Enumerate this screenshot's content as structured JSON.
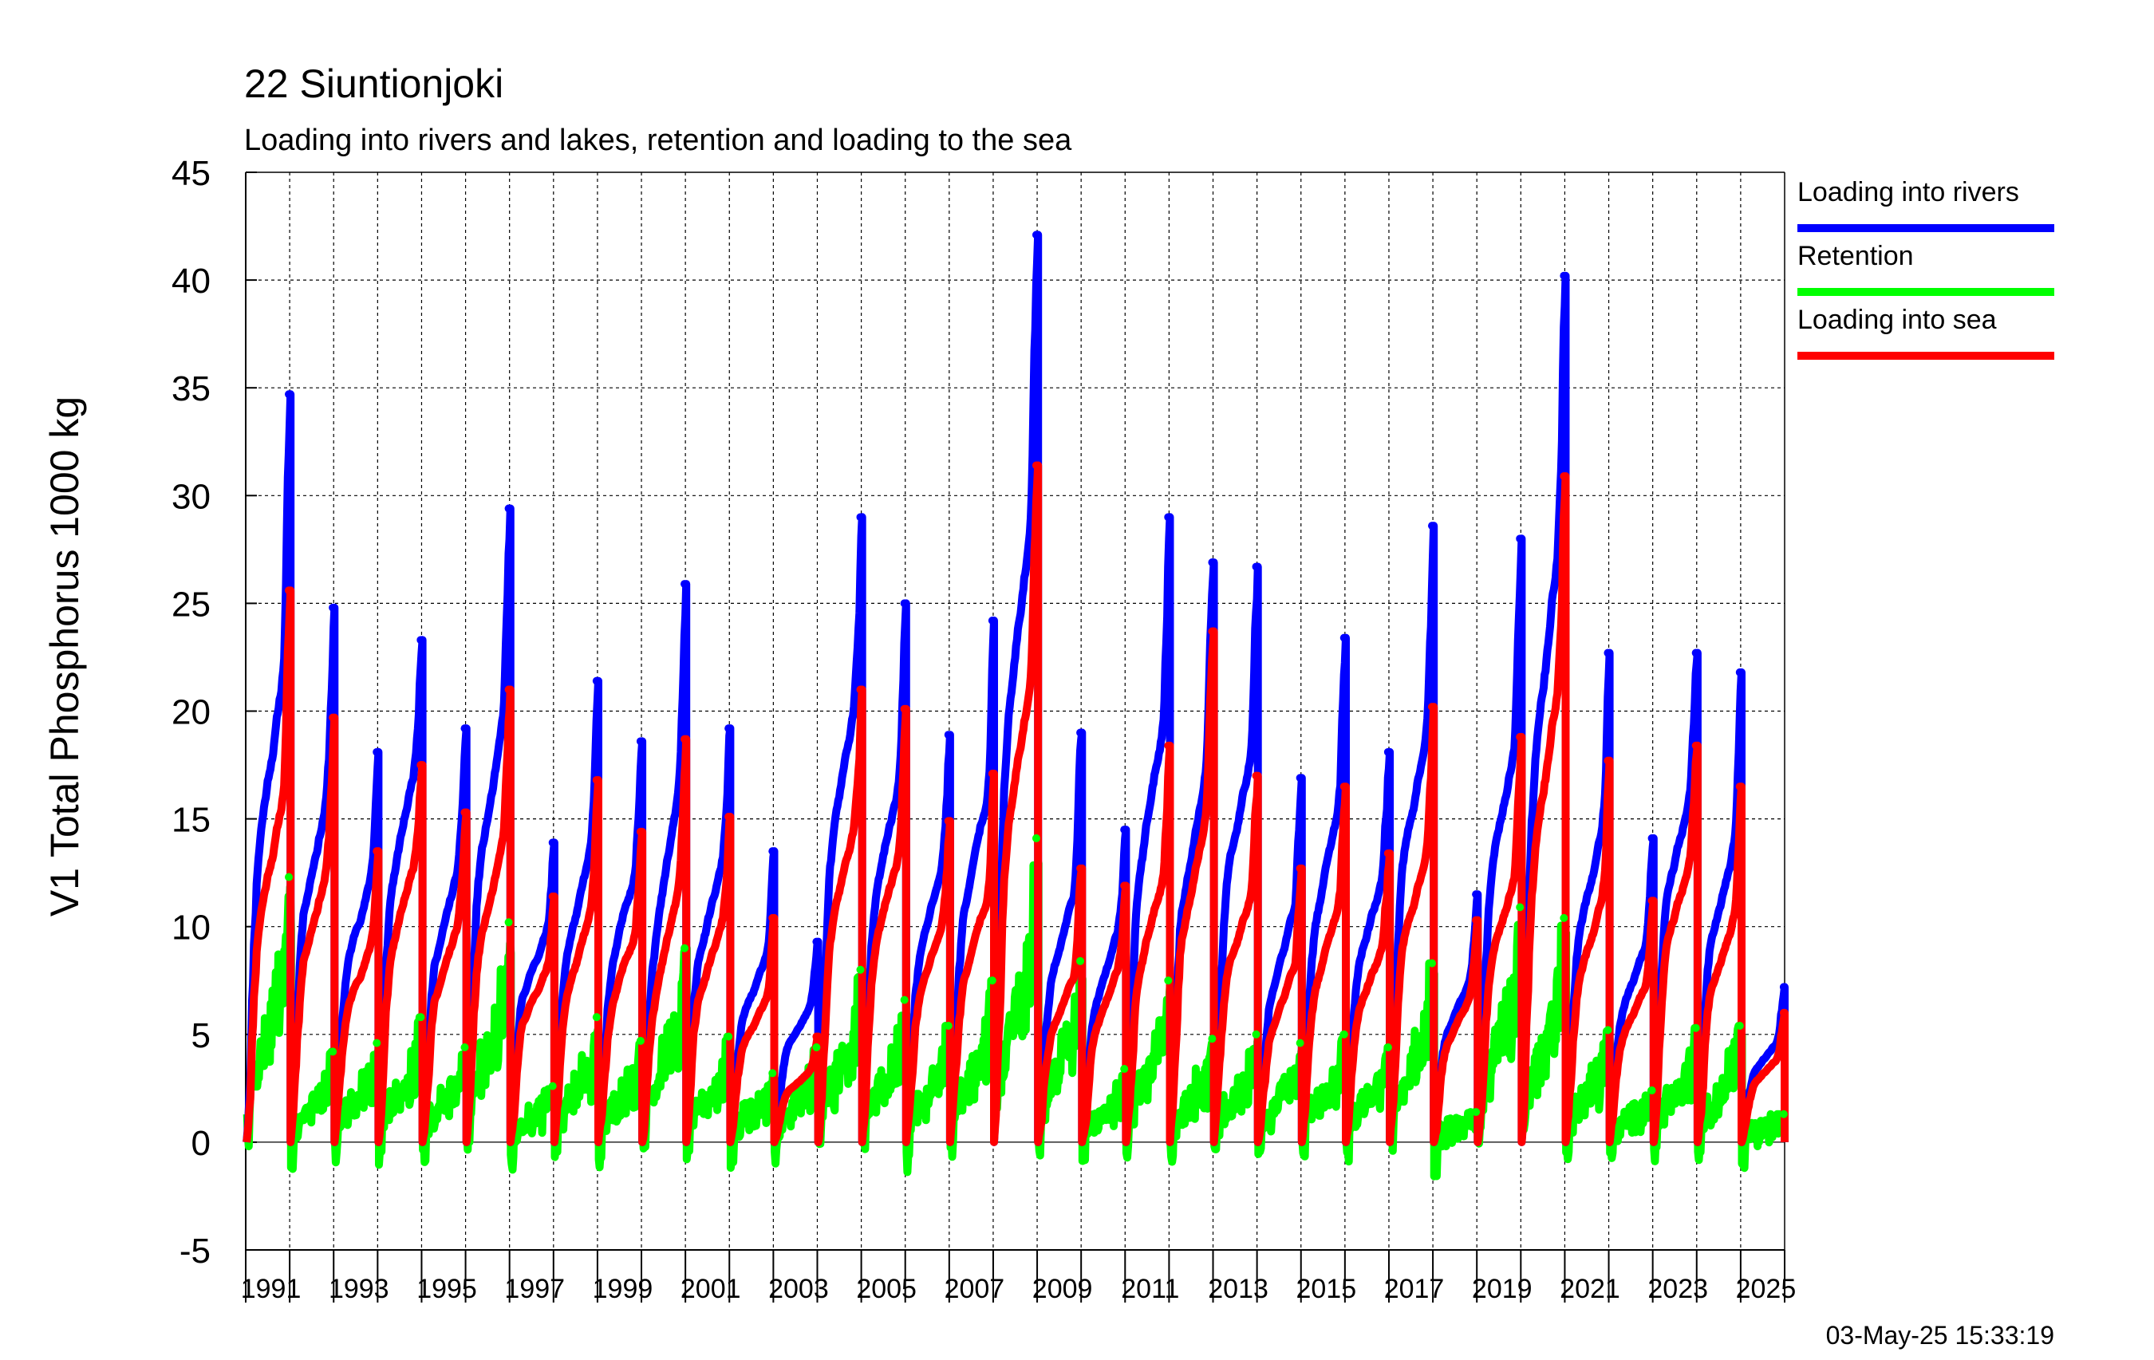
{
  "chart_data": {
    "type": "line",
    "title": "22 Siuntionjoki",
    "subtitle": "Loading into rivers and lakes, retention and loading to the sea",
    "ylabel": "V1 Total Phosphorus 1000 kg",
    "xlabel": "",
    "ylim": [
      -5,
      45
    ],
    "xlim": [
      1990.0,
      2025.0
    ],
    "yticks": [
      -5,
      0,
      5,
      10,
      15,
      20,
      25,
      30,
      35,
      40,
      45
    ],
    "xtick_labels": [
      "1991",
      "1993",
      "1995",
      "1997",
      "1999",
      "2001",
      "2003",
      "2005",
      "2007",
      "2009",
      "2011",
      "2013",
      "2015",
      "2017",
      "2019",
      "2021",
      "2023",
      "2025"
    ],
    "grid": true,
    "legend_position": "right",
    "timestamp": "03-May-25 15:33:19",
    "series": [
      {
        "name": "Loading into rivers",
        "color": "#0000ff",
        "description": "Cumulative within each hydrological year, reset each year",
        "yearly_peaks": [
          {
            "year": 1990,
            "value": 34.7
          },
          {
            "year": 1991,
            "value": 24.8
          },
          {
            "year": 1992,
            "value": 18.1
          },
          {
            "year": 1993,
            "value": 23.3
          },
          {
            "year": 1994,
            "value": 19.2
          },
          {
            "year": 1995,
            "value": 29.4
          },
          {
            "year": 1996,
            "value": 13.9
          },
          {
            "year": 1997,
            "value": 21.4
          },
          {
            "year": 1998,
            "value": 18.6
          },
          {
            "year": 1999,
            "value": 25.9
          },
          {
            "year": 2000,
            "value": 19.2
          },
          {
            "year": 2001,
            "value": 13.5
          },
          {
            "year": 2002,
            "value": 9.3
          },
          {
            "year": 2003,
            "value": 29.0
          },
          {
            "year": 2004,
            "value": 25.0
          },
          {
            "year": 2005,
            "value": 18.9
          },
          {
            "year": 2006,
            "value": 24.2
          },
          {
            "year": 2007,
            "value": 42.1
          },
          {
            "year": 2008,
            "value": 19.0
          },
          {
            "year": 2009,
            "value": 14.5
          },
          {
            "year": 2010,
            "value": 29.0
          },
          {
            "year": 2011,
            "value": 26.9
          },
          {
            "year": 2012,
            "value": 26.7
          },
          {
            "year": 2013,
            "value": 16.9
          },
          {
            "year": 2014,
            "value": 23.4
          },
          {
            "year": 2015,
            "value": 18.1
          },
          {
            "year": 2016,
            "value": 28.6
          },
          {
            "year": 2017,
            "value": 11.5
          },
          {
            "year": 2018,
            "value": 28.0
          },
          {
            "year": 2019,
            "value": 40.2
          },
          {
            "year": 2020,
            "value": 22.7
          },
          {
            "year": 2021,
            "value": 14.1
          },
          {
            "year": 2022,
            "value": 22.7
          },
          {
            "year": 2023,
            "value": 21.8
          },
          {
            "year": 2024,
            "value": 7.2
          }
        ]
      },
      {
        "name": "Retention",
        "color": "#00ff00",
        "description": "Fluctuates between roughly -4 and 14",
        "yearly_peaks": [
          {
            "year": 1990,
            "value": 12.3
          },
          {
            "year": 1991,
            "value": 4.2
          },
          {
            "year": 1992,
            "value": 4.6
          },
          {
            "year": 1993,
            "value": 5.8
          },
          {
            "year": 1994,
            "value": 4.4
          },
          {
            "year": 1995,
            "value": 10.2
          },
          {
            "year": 1996,
            "value": 2.6
          },
          {
            "year": 1997,
            "value": 5.8
          },
          {
            "year": 1998,
            "value": 4.7
          },
          {
            "year": 1999,
            "value": 9.0
          },
          {
            "year": 2000,
            "value": 4.9
          },
          {
            "year": 2001,
            "value": 3.2
          },
          {
            "year": 2002,
            "value": 4.4
          },
          {
            "year": 2003,
            "value": 8.0
          },
          {
            "year": 2004,
            "value": 6.6
          },
          {
            "year": 2005,
            "value": 5.4
          },
          {
            "year": 2006,
            "value": 7.5
          },
          {
            "year": 2007,
            "value": 14.1
          },
          {
            "year": 2008,
            "value": 8.4
          },
          {
            "year": 2009,
            "value": 3.4
          },
          {
            "year": 2010,
            "value": 7.5
          },
          {
            "year": 2011,
            "value": 4.8
          },
          {
            "year": 2012,
            "value": 5.0
          },
          {
            "year": 2013,
            "value": 4.6
          },
          {
            "year": 2014,
            "value": 5.0
          },
          {
            "year": 2015,
            "value": 4.4
          },
          {
            "year": 2016,
            "value": 8.3
          },
          {
            "year": 2017,
            "value": 1.4
          },
          {
            "year": 2018,
            "value": 10.9
          },
          {
            "year": 2019,
            "value": 10.4
          },
          {
            "year": 2020,
            "value": 5.2
          },
          {
            "year": 2021,
            "value": 2.4
          },
          {
            "year": 2022,
            "value": 5.3
          },
          {
            "year": 2023,
            "value": 5.4
          },
          {
            "year": 2024,
            "value": 1.3
          }
        ]
      },
      {
        "name": "Loading into sea",
        "color": "#ff0000",
        "description": "Cumulative within each hydrological year, reset each year",
        "yearly_peaks": [
          {
            "year": 1990,
            "value": 25.6
          },
          {
            "year": 1991,
            "value": 19.7
          },
          {
            "year": 1992,
            "value": 13.5
          },
          {
            "year": 1993,
            "value": 17.5
          },
          {
            "year": 1994,
            "value": 15.3
          },
          {
            "year": 1995,
            "value": 21.0
          },
          {
            "year": 1996,
            "value": 11.4
          },
          {
            "year": 1997,
            "value": 16.8
          },
          {
            "year": 1998,
            "value": 14.4
          },
          {
            "year": 1999,
            "value": 18.7
          },
          {
            "year": 2000,
            "value": 15.1
          },
          {
            "year": 2001,
            "value": 10.4
          },
          {
            "year": 2002,
            "value": 4.9
          },
          {
            "year": 2003,
            "value": 21.0
          },
          {
            "year": 2004,
            "value": 20.1
          },
          {
            "year": 2005,
            "value": 14.9
          },
          {
            "year": 2006,
            "value": 17.1
          },
          {
            "year": 2007,
            "value": 31.4
          },
          {
            "year": 2008,
            "value": 12.7
          },
          {
            "year": 2009,
            "value": 11.9
          },
          {
            "year": 2010,
            "value": 18.4
          },
          {
            "year": 2011,
            "value": 23.7
          },
          {
            "year": 2012,
            "value": 17.0
          },
          {
            "year": 2013,
            "value": 12.7
          },
          {
            "year": 2014,
            "value": 16.5
          },
          {
            "year": 2015,
            "value": 13.4
          },
          {
            "year": 2016,
            "value": 20.2
          },
          {
            "year": 2017,
            "value": 10.3
          },
          {
            "year": 2018,
            "value": 18.8
          },
          {
            "year": 2019,
            "value": 30.9
          },
          {
            "year": 2020,
            "value": 17.7
          },
          {
            "year": 2021,
            "value": 11.2
          },
          {
            "year": 2022,
            "value": 18.4
          },
          {
            "year": 2023,
            "value": 16.5
          },
          {
            "year": 2024,
            "value": 6.0
          }
        ]
      }
    ]
  }
}
